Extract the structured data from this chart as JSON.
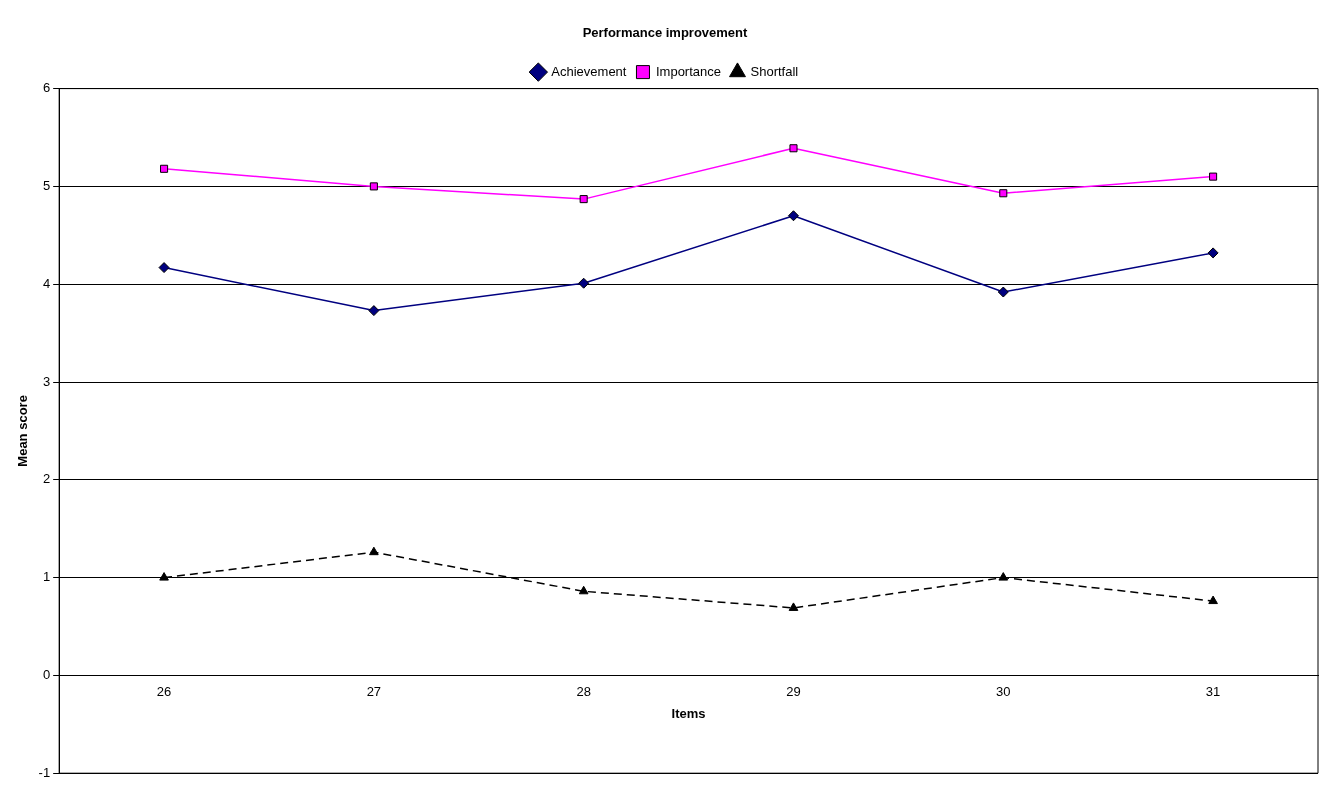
{
  "chart_data": {
    "type": "line",
    "title": "Performance improvement",
    "xlabel": "Items",
    "ylabel": "Mean score",
    "categories": [
      "26",
      "27",
      "28",
      "29",
      "30",
      "31"
    ],
    "series": [
      {
        "name": "Achievement",
        "color": "#000080",
        "marker": "diamond",
        "line_style": "solid",
        "values": [
          4.17,
          3.73,
          4.01,
          4.7,
          3.92,
          4.32
        ]
      },
      {
        "name": "Importance",
        "color": "#ff00ff",
        "marker": "square",
        "line_style": "solid",
        "values": [
          5.18,
          5.0,
          4.87,
          5.39,
          4.93,
          5.1
        ]
      },
      {
        "name": "Shortfall",
        "color": "#000000",
        "marker": "triangle",
        "line_style": "dashed",
        "values": [
          1.0,
          1.26,
          0.86,
          0.69,
          1.0,
          0.76
        ]
      }
    ],
    "ylim": [
      -1,
      6
    ],
    "yticks": [
      -1,
      0,
      1,
      2,
      3,
      4,
      5,
      6
    ],
    "grid": "y",
    "legend": "top"
  }
}
